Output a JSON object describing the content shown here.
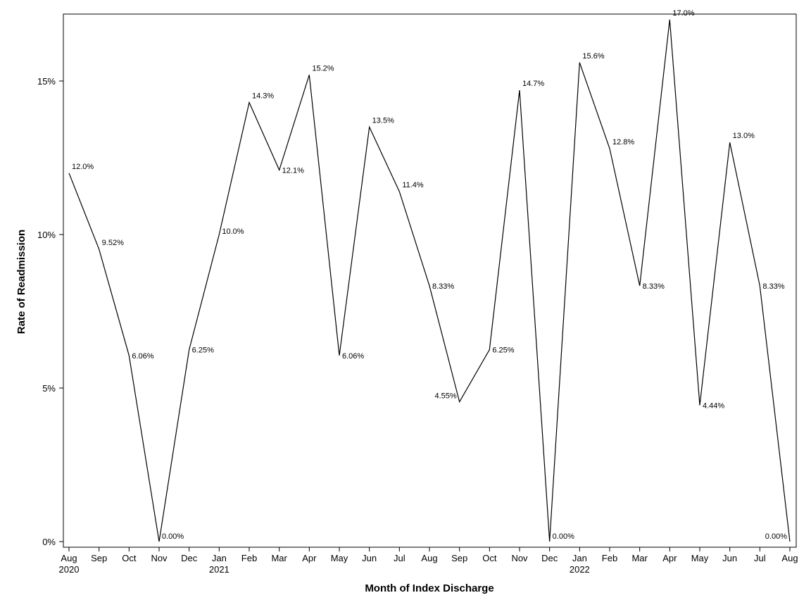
{
  "chart_data": {
    "type": "line",
    "title": "",
    "xlabel": "Month of Index Discharge",
    "ylabel": "Rate of Readmission",
    "ylim": [
      0,
      17.4
    ],
    "yticks": [
      0,
      5,
      10,
      15
    ],
    "ytick_labels": [
      "0%",
      "5%",
      "10%",
      "15%"
    ],
    "x_month_labels": [
      "Aug",
      "Sep",
      "Oct",
      "Nov",
      "Dec",
      "Jan",
      "Feb",
      "Mar",
      "Apr",
      "May",
      "Jun",
      "Jul",
      "Aug",
      "Sep",
      "Oct",
      "Nov",
      "Dec",
      "Jan",
      "Feb",
      "Mar",
      "Apr",
      "May",
      "Jun",
      "Jul",
      "Aug"
    ],
    "x_year_labels": [
      {
        "index": 0,
        "label": "2020"
      },
      {
        "index": 5,
        "label": "2021"
      },
      {
        "index": 17,
        "label": "2022"
      }
    ],
    "series": [
      {
        "values": [
          12.0,
          9.52,
          6.06,
          0.0,
          6.25,
          10.0,
          14.3,
          12.1,
          15.2,
          6.06,
          13.5,
          11.4,
          8.33,
          4.55,
          6.25,
          14.7,
          0.0,
          15.6,
          12.8,
          8.33,
          17.0,
          4.44,
          13.0,
          8.33,
          0.0
        ],
        "labels": [
          "12.0%",
          "9.52%",
          "6.06%",
          "0.00%",
          "6.25%",
          "10.0%",
          "14.3%",
          "12.1%",
          "15.2%",
          "6.06%",
          "13.5%",
          "11.4%",
          "8.33%",
          "4.55%",
          "6.25%",
          "14.7%",
          "0.00%",
          "15.6%",
          "12.8%",
          "8.33%",
          "17.0%",
          "4.44%",
          "13.0%",
          "8.33%",
          "0.00%"
        ]
      }
    ],
    "grid": false,
    "legend": "none",
    "line_color": "#000000"
  }
}
